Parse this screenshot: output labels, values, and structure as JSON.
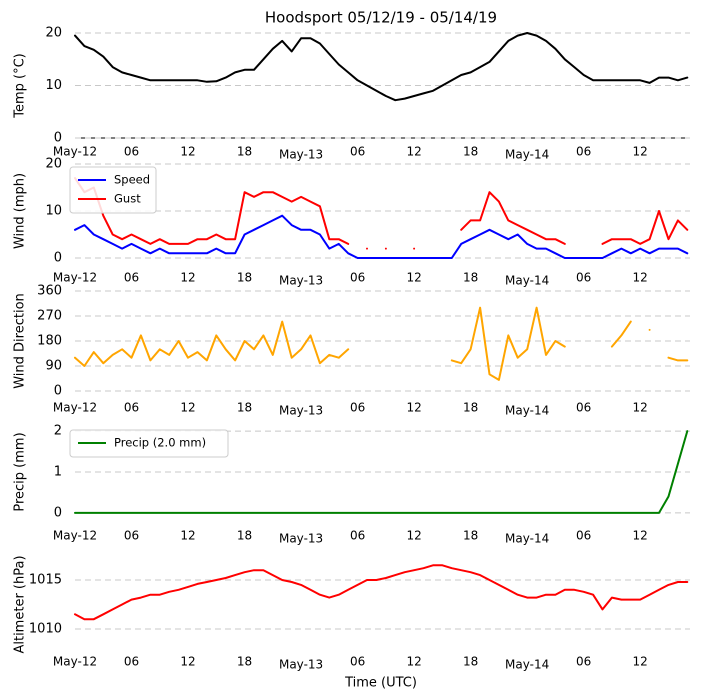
{
  "title": "Hoodsport 05/12/19 - 05/14/19",
  "chart_data": [
    {
      "type": "line",
      "ylabel": "Temp (°C)",
      "x": [
        0,
        1,
        2,
        3,
        4,
        5,
        6,
        7,
        8,
        9,
        10,
        11,
        12,
        13,
        14,
        15,
        16,
        17,
        18,
        19,
        20,
        21,
        22,
        23,
        24,
        25,
        26,
        27,
        28,
        29,
        30,
        31,
        32,
        33,
        34,
        35,
        36,
        37,
        38,
        39,
        40,
        41,
        42,
        43,
        44,
        45,
        46,
        47,
        48,
        49,
        50,
        51,
        52,
        53,
        54,
        55,
        56,
        57,
        58,
        59,
        60,
        61,
        62,
        63,
        64,
        65
      ],
      "xlim": [
        0,
        65.5
      ],
      "xticks": [
        {
          "value": 0,
          "label": "May-12"
        },
        {
          "value": 6,
          "label": "06"
        },
        12,
        18,
        {
          "value": 24,
          "label": "May-13"
        },
        {
          "value": 30,
          "label": "06"
        },
        {
          "value": 36,
          "label": "12"
        },
        {
          "value": 42,
          "label": "18"
        },
        {
          "value": 48,
          "label": "May-14"
        },
        {
          "value": 54,
          "label": "06"
        },
        {
          "value": 60,
          "label": "12"
        }
      ],
      "ylim": [
        0,
        20
      ],
      "yticks": [
        0,
        10,
        20
      ],
      "grid": true,
      "series": [
        {
          "name": "Temp",
          "color": "#000000",
          "values": [
            19.5,
            17.5,
            16.8,
            15.5,
            13.5,
            12.5,
            12,
            11.5,
            11,
            11,
            11,
            11,
            11,
            11,
            10.7,
            10.8,
            11.5,
            12.5,
            13,
            13,
            15,
            17,
            18.5,
            16.5,
            19,
            19,
            18,
            16,
            14,
            12.5,
            11,
            10,
            9,
            8,
            7.2,
            7.5,
            8,
            8.5,
            9,
            10,
            11,
            12,
            12.5,
            13.5,
            14.5,
            16.5,
            18.5,
            19.5,
            20,
            19.5,
            18.5,
            17,
            15,
            13.5,
            12,
            11,
            11,
            11,
            11,
            11,
            11,
            10.5,
            11.5,
            11.5,
            11,
            11.5
          ]
        }
      ]
    },
    {
      "type": "line",
      "ylabel": "Wind (mph)",
      "x": [
        0,
        1,
        2,
        3,
        4,
        5,
        6,
        7,
        8,
        9,
        10,
        11,
        12,
        13,
        14,
        15,
        16,
        17,
        18,
        19,
        20,
        21,
        22,
        23,
        24,
        25,
        26,
        27,
        28,
        29,
        30,
        31,
        32,
        33,
        34,
        35,
        36,
        37,
        38,
        39,
        40,
        41,
        42,
        43,
        44,
        45,
        46,
        47,
        48,
        49,
        50,
        51,
        52,
        53,
        54,
        55,
        56,
        57,
        58,
        59,
        60,
        61,
        62,
        63,
        64,
        65
      ],
      "xlim": [
        0,
        65.5
      ],
      "xticks": [
        {
          "value": 0,
          "label": "May-12"
        },
        {
          "value": 6,
          "label": "06"
        },
        12,
        18,
        {
          "value": 24,
          "label": "May-13"
        },
        {
          "value": 30,
          "label": "06"
        },
        {
          "value": 36,
          "label": "12"
        },
        {
          "value": 42,
          "label": "18"
        },
        {
          "value": 48,
          "label": "May-14"
        },
        {
          "value": 54,
          "label": "06"
        },
        {
          "value": 60,
          "label": "12"
        }
      ],
      "ylim": [
        0,
        20
      ],
      "yticks": [
        0,
        10,
        20
      ],
      "grid": true,
      "legend": "upper left",
      "series": [
        {
          "name": "Speed",
          "color": "#0000ff",
          "values": [
            6,
            7,
            5,
            4,
            3,
            2,
            3,
            2,
            1,
            2,
            1,
            1,
            1,
            1,
            1,
            2,
            1,
            1,
            5,
            6,
            7,
            8,
            9,
            7,
            6,
            6,
            5,
            2,
            3,
            1,
            0,
            0,
            0,
            0,
            0,
            0,
            0,
            0,
            0,
            0,
            0,
            3,
            4,
            5,
            6,
            5,
            4,
            5,
            3,
            2,
            2,
            1,
            0,
            0,
            0,
            0,
            0,
            1,
            2,
            1,
            2,
            1,
            2,
            2,
            2,
            1
          ]
        },
        {
          "name": "Gust",
          "color": "#ff0000",
          "values": [
            17,
            14,
            15,
            9,
            5,
            4,
            5,
            4,
            3,
            4,
            3,
            3,
            3,
            4,
            4,
            5,
            4,
            4,
            14,
            13,
            14,
            14,
            13,
            12,
            13,
            12,
            11,
            4,
            4,
            3,
            null,
            2,
            null,
            2,
            null,
            null,
            2,
            null,
            null,
            null,
            null,
            6,
            8,
            8,
            14,
            12,
            8,
            7,
            6,
            5,
            4,
            4,
            3,
            null,
            null,
            null,
            3,
            4,
            4,
            4,
            3,
            4,
            10,
            4,
            8,
            6
          ]
        }
      ]
    },
    {
      "type": "line",
      "ylabel": "Wind Direction",
      "x": [
        0,
        1,
        2,
        3,
        4,
        5,
        6,
        7,
        8,
        9,
        10,
        11,
        12,
        13,
        14,
        15,
        16,
        17,
        18,
        19,
        20,
        21,
        22,
        23,
        24,
        25,
        26,
        27,
        28,
        29,
        30,
        31,
        32,
        33,
        34,
        35,
        36,
        37,
        38,
        39,
        40,
        41,
        42,
        43,
        44,
        45,
        46,
        47,
        48,
        49,
        50,
        51,
        52,
        53,
        54,
        55,
        56,
        57,
        58,
        59,
        60,
        61,
        62,
        63,
        64,
        65
      ],
      "xlim": [
        0,
        65.5
      ],
      "xticks": [
        {
          "value": 0,
          "label": "May-12"
        },
        {
          "value": 6,
          "label": "06"
        },
        12,
        18,
        {
          "value": 24,
          "label": "May-13"
        },
        {
          "value": 30,
          "label": "06"
        },
        {
          "value": 36,
          "label": "12"
        },
        {
          "value": 42,
          "label": "18"
        },
        {
          "value": 48,
          "label": "May-14"
        },
        {
          "value": 54,
          "label": "06"
        },
        {
          "value": 60,
          "label": "12"
        }
      ],
      "ylim": [
        0,
        360
      ],
      "yticks": [
        0,
        90,
        180,
        270,
        360
      ],
      "grid": true,
      "series": [
        {
          "name": "Direction",
          "color": "#ffa500",
          "values": [
            120,
            90,
            140,
            100,
            130,
            150,
            120,
            200,
            110,
            150,
            130,
            180,
            120,
            140,
            110,
            200,
            150,
            110,
            180,
            150,
            200,
            130,
            250,
            120,
            150,
            200,
            100,
            130,
            120,
            150,
            null,
            null,
            null,
            null,
            null,
            null,
            null,
            null,
            null,
            null,
            110,
            100,
            150,
            300,
            60,
            40,
            200,
            120,
            150,
            300,
            130,
            180,
            160,
            null,
            null,
            null,
            null,
            160,
            200,
            250,
            null,
            220,
            null,
            120,
            110,
            110
          ]
        }
      ]
    },
    {
      "type": "line",
      "ylabel": "Precip (mm)",
      "x": [
        0,
        1,
        2,
        3,
        4,
        5,
        6,
        7,
        8,
        9,
        10,
        11,
        12,
        13,
        14,
        15,
        16,
        17,
        18,
        19,
        20,
        21,
        22,
        23,
        24,
        25,
        26,
        27,
        28,
        29,
        30,
        31,
        32,
        33,
        34,
        35,
        36,
        37,
        38,
        39,
        40,
        41,
        42,
        43,
        44,
        45,
        46,
        47,
        48,
        49,
        50,
        51,
        52,
        53,
        54,
        55,
        56,
        57,
        58,
        59,
        60,
        61,
        62,
        63,
        64,
        65
      ],
      "xlim": [
        0,
        65.5
      ],
      "xticks": [
        {
          "value": 0,
          "label": "May-12"
        },
        {
          "value": 6,
          "label": "06"
        },
        12,
        18,
        {
          "value": 24,
          "label": "May-13"
        },
        {
          "value": 30,
          "label": "06"
        },
        {
          "value": 36,
          "label": "12"
        },
        {
          "value": 42,
          "label": "18"
        },
        {
          "value": 48,
          "label": "May-14"
        },
        {
          "value": 54,
          "label": "06"
        },
        {
          "value": 60,
          "label": "12"
        }
      ],
      "ylim": [
        -0.1,
        2.1
      ],
      "yticks": [
        0,
        1,
        2
      ],
      "grid": true,
      "legend": "upper left",
      "series": [
        {
          "name": "Precip (2.0 mm)",
          "color": "#008000",
          "values": [
            0,
            0,
            0,
            0,
            0,
            0,
            0,
            0,
            0,
            0,
            0,
            0,
            0,
            0,
            0,
            0,
            0,
            0,
            0,
            0,
            0,
            0,
            0,
            0,
            0,
            0,
            0,
            0,
            0,
            0,
            0,
            0,
            0,
            0,
            0,
            0,
            0,
            0,
            0,
            0,
            0,
            0,
            0,
            0,
            0,
            0,
            0,
            0,
            0,
            0,
            0,
            0,
            0,
            0,
            0,
            0,
            0,
            0,
            0,
            0,
            0,
            0,
            0,
            0.4,
            1.2,
            2.0
          ]
        }
      ]
    },
    {
      "type": "line",
      "ylabel": "Altimeter (hPa)",
      "xlabel": "Time (UTC)",
      "x": [
        0,
        1,
        2,
        3,
        4,
        5,
        6,
        7,
        8,
        9,
        10,
        11,
        12,
        13,
        14,
        15,
        16,
        17,
        18,
        19,
        20,
        21,
        22,
        23,
        24,
        25,
        26,
        27,
        28,
        29,
        30,
        31,
        32,
        33,
        34,
        35,
        36,
        37,
        38,
        39,
        40,
        41,
        42,
        43,
        44,
        45,
        46,
        47,
        48,
        49,
        50,
        51,
        52,
        53,
        54,
        55,
        56,
        57,
        58,
        59,
        60,
        61,
        62,
        63,
        64,
        65
      ],
      "xlim": [
        0,
        65.5
      ],
      "xticks": [
        {
          "value": 0,
          "label": "May-12"
        },
        {
          "value": 6,
          "label": "06"
        },
        12,
        18,
        {
          "value": 24,
          "label": "May-13"
        },
        {
          "value": 30,
          "label": "06"
        },
        {
          "value": 36,
          "label": "12"
        },
        {
          "value": 42,
          "label": "18"
        },
        {
          "value": 48,
          "label": "May-14"
        },
        {
          "value": 54,
          "label": "06"
        },
        {
          "value": 60,
          "label": "12"
        }
      ],
      "ylim": [
        1007.5,
        1017.5
      ],
      "yticks": [
        1010,
        1015
      ],
      "grid": true,
      "series": [
        {
          "name": "Altimeter",
          "color": "#ff0000",
          "values": [
            1011.5,
            1011,
            1011,
            1011.5,
            1012,
            1012.5,
            1013,
            1013.2,
            1013.5,
            1013.5,
            1013.8,
            1014,
            1014.3,
            1014.6,
            1014.8,
            1015,
            1015.2,
            1015.5,
            1015.8,
            1016,
            1016,
            1015.5,
            1015,
            1014.8,
            1014.5,
            1014,
            1013.5,
            1013.2,
            1013.5,
            1014,
            1014.5,
            1015,
            1015,
            1015.2,
            1015.5,
            1015.8,
            1016,
            1016.2,
            1016.5,
            1016.5,
            1016.2,
            1016,
            1015.8,
            1015.5,
            1015,
            1014.5,
            1014,
            1013.5,
            1013.2,
            1013.2,
            1013.5,
            1013.5,
            1014,
            1014,
            1013.8,
            1013.5,
            1012,
            1013.2,
            1013,
            1013,
            1013,
            1013.5,
            1014,
            1014.5,
            1014.8,
            1014.8
          ]
        }
      ]
    }
  ]
}
